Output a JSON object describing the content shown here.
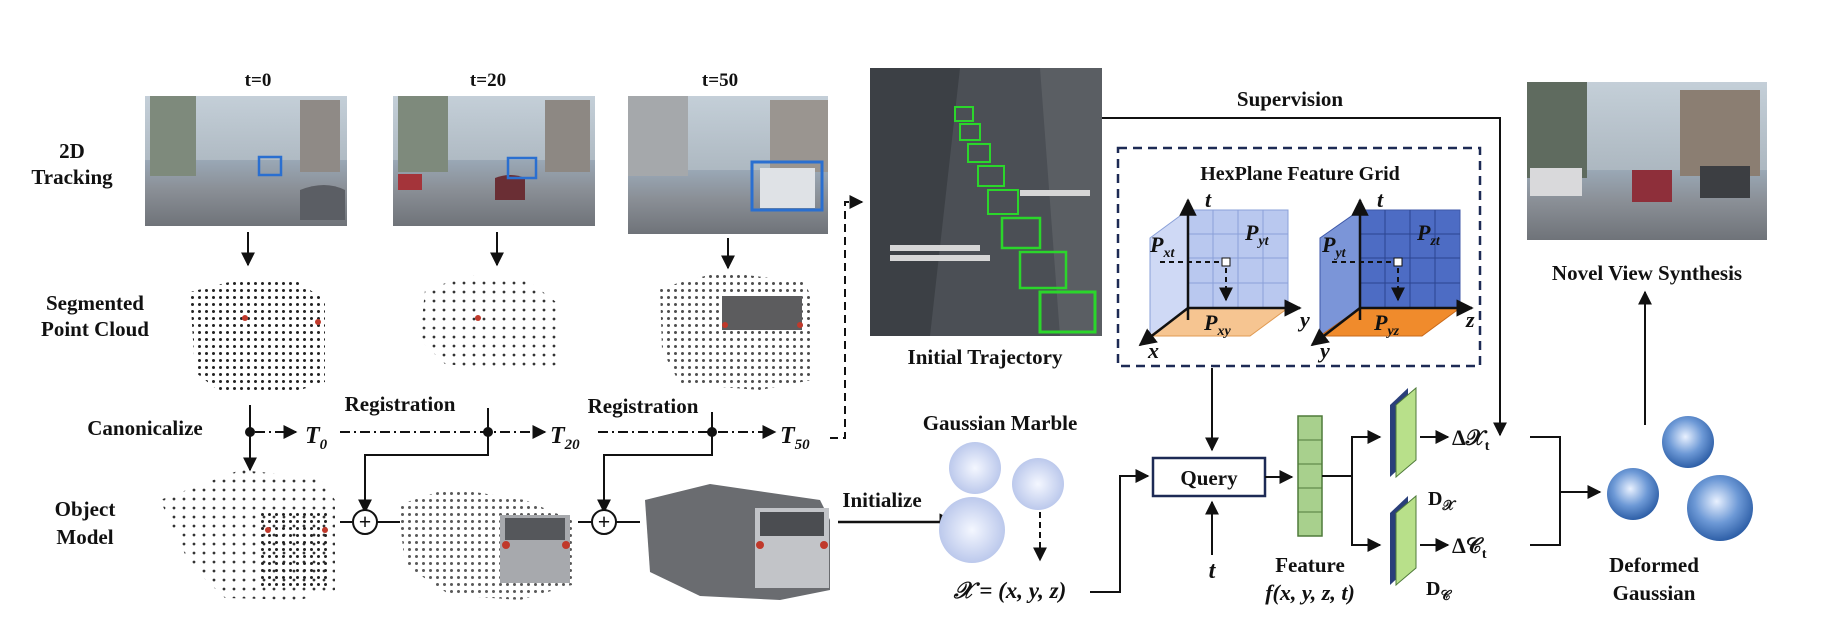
{
  "labels": {
    "t0": "t=0",
    "t20": "t=20",
    "t50": "t=50",
    "tracking_line1": "2D",
    "tracking_line2": "Tracking",
    "segmented_line1": "Segmented",
    "segmented_line2": "Point Cloud",
    "canonicalize": "Canonicalize",
    "object_line1": "Object",
    "object_line2": "Model",
    "registration_1": "Registration",
    "registration_2": "Registration",
    "T0": "T",
    "T0_sub": "0",
    "T20": "T",
    "T20_sub": "20",
    "T50": "T",
    "T50_sub": "50",
    "initial_trajectory": "Initial Trajectory",
    "supervision": "Supervision",
    "hexplane_title": "HexPlane Feature Grid",
    "initialize": "Initialize",
    "gaussian_marble": "Gaussian Marble",
    "gaussian_coords": "𝒳 = (x, y, z)",
    "query": "Query",
    "t_input": "t",
    "feature": "Feature",
    "feature_func": "f(x, y, z, t)",
    "delta_x": "Δ𝒳",
    "delta_x_sub": "t",
    "delta_c": "Δ𝒞",
    "delta_c_sub": "t",
    "decoder_x": "D",
    "decoder_x_sub": "𝒳",
    "decoder_c": "D",
    "decoder_c_sub": "𝒞",
    "novel_view": "Novel View Synthesis",
    "deformed_line1": "Deformed",
    "deformed_line2": "Gaussian",
    "plus": "+"
  },
  "hexplane": {
    "grid1": {
      "axis_up": "t",
      "axis_right": "y",
      "axis_diag": "x",
      "p_left": "P",
      "p_left_sub": "xt",
      "p_center": "P",
      "p_center_sub": "yt",
      "p_bottom": "P",
      "p_bottom_sub": "xy"
    },
    "grid2": {
      "axis_up": "t",
      "axis_right": "z",
      "axis_diag": "y",
      "p_left": "P",
      "p_left_sub": "yt",
      "p_center": "P",
      "p_center_sub": "zt",
      "p_bottom": "P",
      "p_bottom_sub": "yz"
    }
  },
  "colors": {
    "box_green": "#2bd62b",
    "registration_dot": "#111111",
    "gaussian_light": "#c9d4ef",
    "gaussian_blue": "#3a6fb8",
    "grid1_face": "#b9c8ef",
    "grid2_face": "#4d6cc4",
    "floor_orange": "#f2b26e",
    "feature_green": "#a8d08d",
    "decoder_green": "#b8e08a",
    "decoder_back": "#2a3f7a",
    "dashed_box": "#1d2a55"
  }
}
